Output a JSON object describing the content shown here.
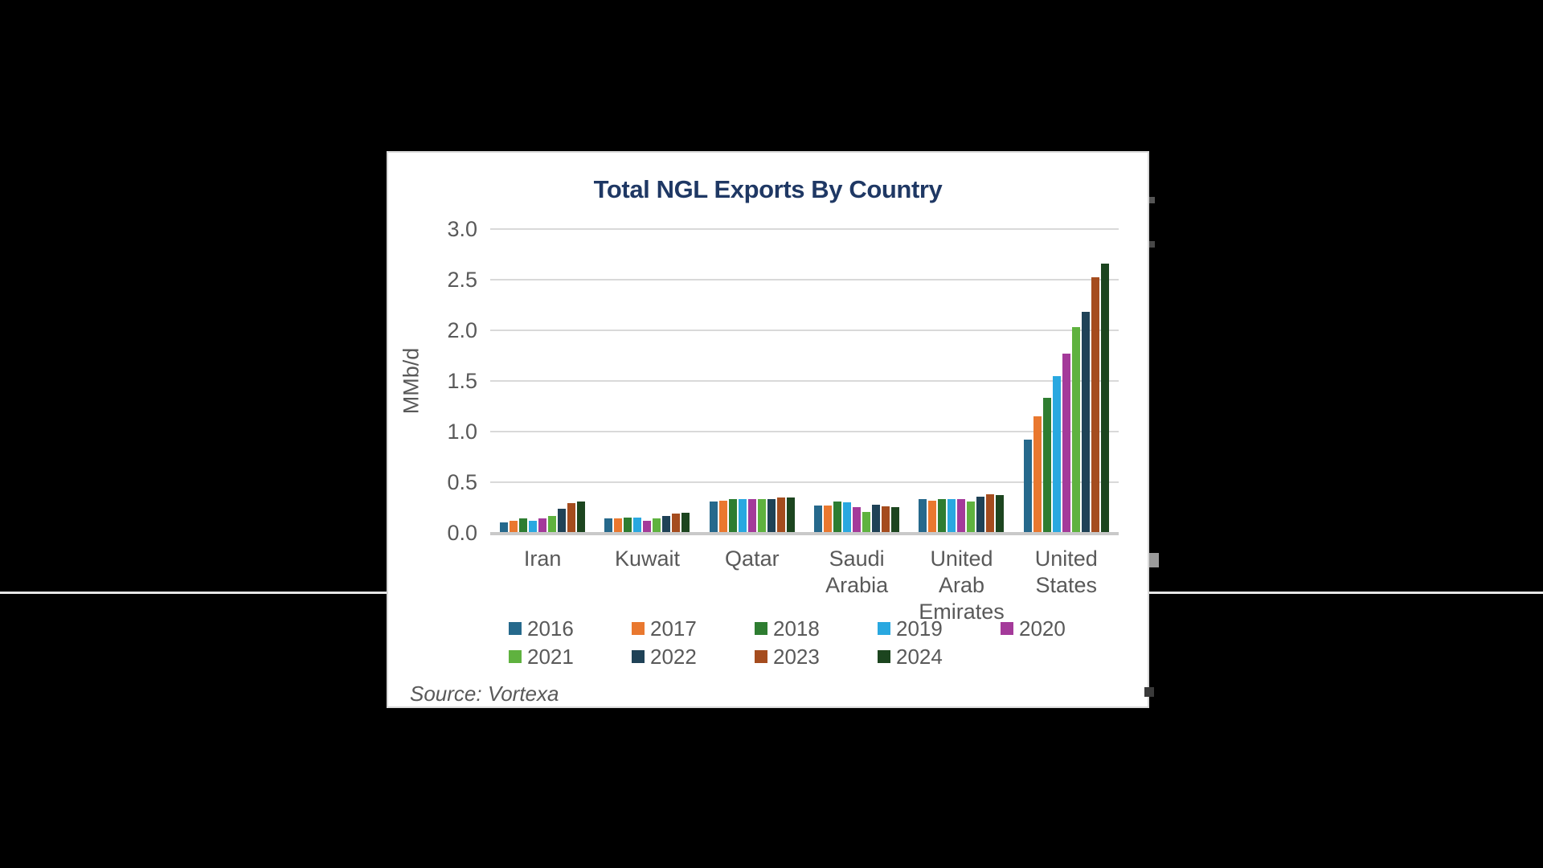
{
  "page": {
    "background_color": "#000000"
  },
  "card": {
    "background_color": "#FFFFFF",
    "border_color": "#D9D9D9"
  },
  "chart": {
    "title": "Total NGL Exports By Country",
    "title_color": "#1F3864",
    "ylabel": "MMb/d",
    "source": "Source: Vortexa",
    "axis_text_color": "#595959",
    "gridline_color": "#D9D9D9",
    "axis_line_color": "#C9C9C9"
  },
  "chart_data": {
    "type": "bar",
    "title": "Total NGL Exports By Country",
    "xlabel": "",
    "ylabel": "MMb/d",
    "ylim": [
      0,
      3.0
    ],
    "yticks": [
      0.0,
      0.5,
      1.0,
      1.5,
      2.0,
      2.5,
      3.0
    ],
    "ytick_format_decimals": 1,
    "grid": "horizontal",
    "legend_position": "bottom",
    "source": "Source: Vortexa",
    "categories": [
      "Iran",
      "Kuwait",
      "Qatar",
      "Saudi Arabia",
      "United Arab Emirates",
      "United States"
    ],
    "series": [
      {
        "name": "2016",
        "color": "#26698C",
        "values": [
          0.1,
          0.14,
          0.31,
          0.27,
          0.33,
          0.92
        ]
      },
      {
        "name": "2017",
        "color": "#E9782F",
        "values": [
          0.12,
          0.14,
          0.32,
          0.27,
          0.32,
          1.15
        ]
      },
      {
        "name": "2018",
        "color": "#2E7D31",
        "values": [
          0.14,
          0.15,
          0.33,
          0.31,
          0.33,
          1.33
        ]
      },
      {
        "name": "2019",
        "color": "#29A8E0",
        "values": [
          0.12,
          0.15,
          0.33,
          0.3,
          0.33,
          1.55
        ]
      },
      {
        "name": "2020",
        "color": "#A43A9A",
        "values": [
          0.14,
          0.12,
          0.33,
          0.25,
          0.33,
          1.77
        ]
      },
      {
        "name": "2021",
        "color": "#5FB23F",
        "values": [
          0.17,
          0.14,
          0.33,
          0.21,
          0.31,
          2.03
        ]
      },
      {
        "name": "2022",
        "color": "#1F4257",
        "values": [
          0.24,
          0.17,
          0.33,
          0.28,
          0.36,
          2.18
        ]
      },
      {
        "name": "2023",
        "color": "#A54C1E",
        "values": [
          0.29,
          0.19,
          0.35,
          0.26,
          0.38,
          2.52
        ]
      },
      {
        "name": "2024",
        "color": "#1C451F",
        "values": [
          0.31,
          0.2,
          0.35,
          0.25,
          0.37,
          2.66
        ]
      }
    ]
  }
}
